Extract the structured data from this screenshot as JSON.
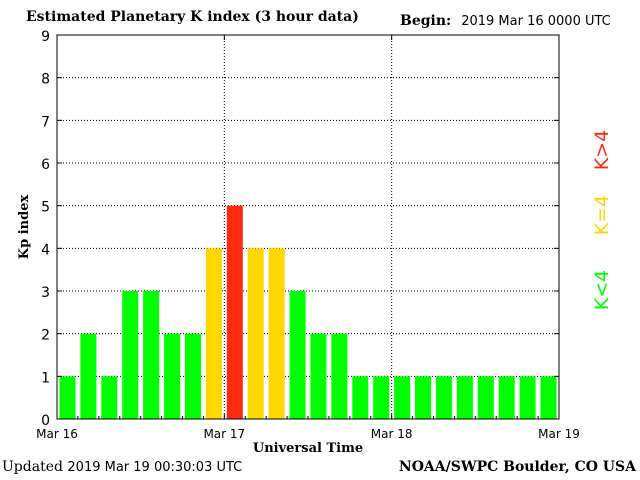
{
  "header": {
    "title": "Estimated Planetary K index (3 hour data)",
    "begin_label": "Begin:",
    "begin_value": "2019 Mar 16 0000 UTC"
  },
  "footer": {
    "updated_label": "Updated",
    "updated_value": "2019 Mar 19 00:30:03 UTC",
    "source": "NOAA/SWPC Boulder, CO USA"
  },
  "legend": {
    "low": "K<4",
    "mid": "K=4",
    "high": "K>4",
    "colors": {
      "low": "#00ff00",
      "mid": "#ffd700",
      "high": "#ff2a12"
    }
  },
  "chart_data": {
    "type": "bar",
    "title": "Estimated Planetary K index (3 hour data)",
    "xlabel": "Universal Time",
    "ylabel": "Kp index",
    "ylim": [
      0,
      9
    ],
    "yticks": [
      0,
      1,
      2,
      3,
      4,
      5,
      6,
      7,
      8,
      9
    ],
    "x_tick_labels": [
      "Mar 16",
      "Mar 17",
      "Mar 18",
      "Mar 19"
    ],
    "grid": true,
    "bar_interval_hours": 3,
    "values": [
      1,
      2,
      1,
      3,
      3,
      2,
      2,
      4,
      5,
      4,
      4,
      3,
      2,
      2,
      1,
      1,
      1,
      1,
      1,
      1,
      1,
      1,
      1,
      1
    ]
  }
}
